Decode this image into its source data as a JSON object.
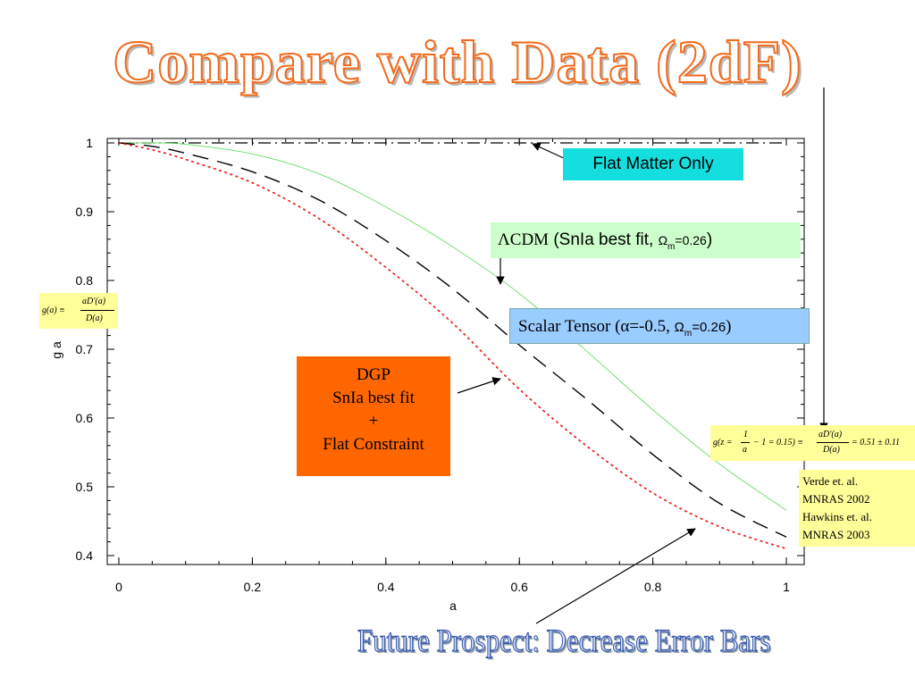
{
  "title": "Compare with Data (2dF)",
  "footer": "Future Prospect: Decrease Error Bars",
  "annotations": {
    "flat_matter": "Flat Matter Only",
    "lcdm_symbol": "Λ",
    "lcdm_text": "CDM",
    "lcdm_paren": " (SnIa best fit, ",
    "lcdm_omega": "Ω",
    "lcdm_sub": "m",
    "lcdm_value": "=0.26",
    "lcdm_close": ")",
    "scalar_text": "Scalar Tensor (α=-0.5, ",
    "scalar_omega": "Ω",
    "scalar_sub": "m",
    "scalar_value": "=0.26",
    "scalar_close": ")",
    "dgp_lines": [
      "DGP",
      "SnIa best fit",
      "+",
      "Flat Constraint"
    ],
    "g_definition": {
      "lhs": "g(a) ≡",
      "numerator": "aD′(a)",
      "denominator": "D(a)"
    },
    "measurement": {
      "lhs": "g(z = ",
      "frac1_num": "1",
      "frac1_den": "a",
      "mid": "− 1 = 0.15) ≡",
      "frac2_num": "aD′(a)",
      "frac2_den": "D(a)",
      "rhs": "= 0.51 ± 0.11"
    },
    "references": [
      "Verde et. al.",
      "MNRAS 2002",
      "Hawkins et. al.",
      "MNRAS 2003"
    ]
  },
  "colors": {
    "title_orange": "#f26a1b",
    "flat_box": "#14dede",
    "lcdm_box": "#ccffcc",
    "scalar_box": "#99ccff",
    "dgp_box": "#ff6600",
    "formula_box": "#ffff99",
    "footer_blue": "#3c5aa8"
  },
  "chart_data": {
    "type": "line",
    "title": "",
    "xlabel": "a",
    "ylabel": "g a",
    "xlim": [
      0,
      1
    ],
    "ylim": [
      0.4,
      1.0
    ],
    "xticks": [
      "0",
      "0.2",
      "0.4",
      "0.6",
      "0.8",
      "1"
    ],
    "yticks": [
      "0.4",
      "0.5",
      "0.6",
      "0.7",
      "0.8",
      "0.9",
      "1"
    ],
    "grid": false,
    "series": [
      {
        "name": "Flat Matter Only",
        "style": "dash-dot",
        "color": "#000000",
        "x": [
          0,
          0.2,
          0.4,
          0.6,
          0.8,
          1.0
        ],
        "values": [
          1,
          1,
          1,
          1,
          1,
          1
        ]
      },
      {
        "name": "ΛCDM (SnIa best fit, Ωm=0.26)",
        "style": "solid",
        "color": "#66dd66",
        "x": [
          0,
          0.05,
          0.1,
          0.2,
          0.3,
          0.4,
          0.5,
          0.6,
          0.7,
          0.8,
          0.9,
          1.0
        ],
        "values": [
          1,
          1.0,
          0.998,
          0.984,
          0.955,
          0.907,
          0.849,
          0.781,
          0.698,
          0.612,
          0.533,
          0.466
        ]
      },
      {
        "name": "Scalar Tensor (α=-0.5, Ωm=0.26)",
        "style": "dashed",
        "color": "#000000",
        "x": [
          0,
          0.05,
          0.1,
          0.2,
          0.3,
          0.4,
          0.5,
          0.6,
          0.7,
          0.8,
          0.9,
          1.0
        ],
        "values": [
          1,
          0.995,
          0.985,
          0.958,
          0.917,
          0.858,
          0.788,
          0.706,
          0.628,
          0.547,
          0.476,
          0.427
        ]
      },
      {
        "name": "DGP SnIa best fit + Flat Constraint",
        "style": "dotted",
        "color": "#ee2222",
        "x": [
          0,
          0.05,
          0.1,
          0.2,
          0.3,
          0.4,
          0.5,
          0.6,
          0.7,
          0.8,
          0.9,
          1.0
        ],
        "values": [
          1,
          0.99,
          0.976,
          0.942,
          0.89,
          0.819,
          0.738,
          0.642,
          0.56,
          0.491,
          0.442,
          0.41
        ]
      }
    ]
  }
}
